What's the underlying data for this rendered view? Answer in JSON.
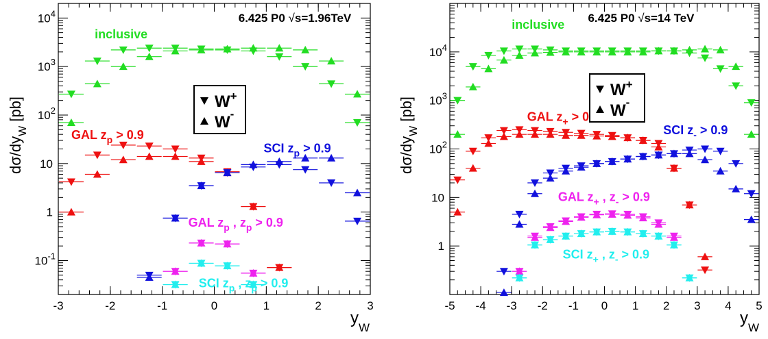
{
  "chart_data": [
    {
      "type": "scatter",
      "log_y": true,
      "xlim": [
        -3,
        3
      ],
      "ylim": [
        0.02,
        20000
      ],
      "xlabel": "y",
      "xlabel_sub": "W",
      "ylabel": "dσ/dy",
      "ylabel_sub": "W",
      "ylabel_unit": "[pb]",
      "info_text": "6.425 P0",
      "energy_label": "s=1.96TeV",
      "x_ticks": [
        "-3",
        "-2",
        "-1",
        "0",
        "1",
        "2",
        "3"
      ],
      "y_ticks": [
        {
          "value": 0.1,
          "base": "10",
          "exp": "-1"
        },
        {
          "value": 1,
          "base": "1",
          "exp": ""
        },
        {
          "value": 10,
          "base": "10",
          "exp": ""
        },
        {
          "value": 100,
          "base": "10",
          "exp": "2"
        },
        {
          "value": 1000,
          "base": "10",
          "exp": "3"
        },
        {
          "value": 10000,
          "base": "10",
          "exp": "4"
        }
      ],
      "legend": {
        "position": "center",
        "entries": [
          {
            "marker": "triangle-down",
            "label": "W",
            "sup": "+",
            "sub": ""
          },
          {
            "marker": "triangle-up",
            "label": "W",
            "sup": "",
            "sub": "-"
          }
        ]
      },
      "labels": [
        {
          "text": "inclusive",
          "color": "#22dd22",
          "x": -2.3,
          "y": 3800
        },
        {
          "text": "GAL z",
          "sub": "p",
          "tail": " > 0.9",
          "color": "#ee1111",
          "x": -2.75,
          "y": 32
        },
        {
          "text": "SCI z",
          "sub": "p",
          "tail": " > 0.9",
          "color": "#1111dd",
          "x": 0.95,
          "y": 17
        },
        {
          "text": "GAL z",
          "sub": "p",
          "tail": " , z",
          "sub2": "p",
          "tail2": " > 0.9",
          "color": "#ee22ee",
          "x": -0.5,
          "y": 0.5
        },
        {
          "text": "SCI z",
          "sub": "p",
          "tail": " , z",
          "sub2": "p",
          "tail2": " > 0.9",
          "color": "#22eeee",
          "x": -0.3,
          "y": 0.028
        }
      ],
      "series": [
        {
          "group": "inclusive",
          "boson": "W+",
          "color": "#22dd22",
          "x": [
            -2.75,
            -2.25,
            -1.75,
            -1.25,
            -0.75,
            -0.25,
            0.25,
            0.75,
            1.25,
            1.75,
            2.25,
            2.75
          ],
          "y": [
            270,
            1300,
            2200,
            2400,
            2400,
            2300,
            2200,
            2100,
            1600,
            1000,
            440,
            70
          ]
        },
        {
          "group": "inclusive",
          "boson": "W-",
          "color": "#22dd22",
          "x": [
            -2.75,
            -2.25,
            -1.75,
            -1.25,
            -0.75,
            -0.25,
            0.25,
            0.75,
            1.25,
            1.75,
            2.25,
            2.75
          ],
          "y": [
            70,
            440,
            1000,
            1600,
            2100,
            2200,
            2300,
            2400,
            2400,
            2200,
            1300,
            270
          ]
        },
        {
          "group": "GAL z_p",
          "boson": "W+",
          "color": "#ee1111",
          "x": [
            -2.75,
            -2.25,
            -1.75,
            -1.25,
            -0.75,
            -0.25,
            0.25,
            0.75
          ],
          "y": [
            4.2,
            15,
            24,
            23,
            20,
            13,
            6.8,
            1.3
          ]
        },
        {
          "group": "GAL z_p",
          "boson": "W-",
          "color": "#ee1111",
          "x": [
            -2.75,
            -2.25,
            -1.75,
            -1.25,
            -0.75,
            -0.25,
            0.25,
            0.75
          ],
          "y": [
            1.0,
            6.0,
            12,
            14,
            14,
            11,
            6.5,
            1.3
          ]
        },
        {
          "group": "SCI z_p",
          "boson": "W+",
          "color": "#1111dd",
          "x": [
            -0.75,
            -0.25,
            0.25,
            0.75,
            1.25,
            1.75,
            2.25,
            2.75
          ],
          "y": [
            0.75,
            3.5,
            6.5,
            8.5,
            9.5,
            7.5,
            4.0,
            0.65
          ]
        },
        {
          "group": "SCI z_p",
          "boson": "W-",
          "color": "#1111dd",
          "x": [
            -0.75,
            -0.25,
            0.25,
            0.75,
            1.25,
            1.75,
            2.25,
            2.75
          ],
          "y": [
            0.75,
            3.5,
            6.5,
            9.5,
            11,
            13,
            13,
            2.5
          ]
        },
        {
          "group": "GAL z_p, z_p",
          "boson": "W+",
          "color": "#ee22ee",
          "x": [
            -0.75,
            -0.25,
            0.25,
            0.75
          ],
          "y": [
            0.06,
            0.23,
            0.22,
            0.055
          ]
        },
        {
          "group": "GAL z_p, z_p",
          "boson": "W-",
          "color": "#ee22ee",
          "x": [
            -0.75,
            -0.25,
            0.25,
            0.75
          ],
          "y": [
            0.06,
            0.23,
            0.22,
            0.055
          ]
        },
        {
          "group": "SCI z_p, z_p",
          "boson": "W+",
          "color": "#22eeee",
          "x": [
            -0.75,
            -0.25,
            0.25,
            0.75
          ],
          "y": [
            0.032,
            0.088,
            0.078,
            0.032
          ]
        },
        {
          "group": "SCI z_p, z_p",
          "boson": "W-",
          "color": "#22eeee",
          "x": [
            -0.75,
            -0.25,
            0.25,
            0.75
          ],
          "y": [
            0.032,
            0.088,
            0.078,
            0.032
          ]
        },
        {
          "group": "GAL z_p red tail",
          "boson": "W+",
          "color": "#ee1111",
          "x": [
            1.25
          ],
          "y": [
            0.072
          ]
        },
        {
          "group": "GAL z_p red tail",
          "boson": "W-",
          "color": "#ee1111",
          "x": [
            1.25
          ],
          "y": [
            0.072
          ]
        },
        {
          "group": "SCI z_p blue tail",
          "boson": "W+",
          "color": "#1111dd",
          "x": [
            -1.25
          ],
          "y": [
            0.05
          ]
        },
        {
          "group": "SCI z_p blue tail",
          "boson": "W-",
          "color": "#1111dd",
          "x": [
            -1.25
          ],
          "y": [
            0.045
          ]
        }
      ]
    },
    {
      "type": "scatter",
      "log_y": true,
      "xlim": [
        -5,
        5
      ],
      "ylim": [
        0.1,
        100000
      ],
      "xlabel": "y",
      "xlabel_sub": "W",
      "ylabel": "dσ/dy",
      "ylabel_sub": "W",
      "ylabel_unit": "[pb]",
      "info_text": "6.425 P0",
      "energy_label": "s=14 TeV",
      "x_ticks": [
        "-5",
        "-4",
        "-3",
        "-2",
        "-1",
        "0",
        "1",
        "2",
        "3",
        "4",
        "5"
      ],
      "y_ticks": [
        {
          "value": 1,
          "base": "1",
          "exp": ""
        },
        {
          "value": 10,
          "base": "10",
          "exp": ""
        },
        {
          "value": 100,
          "base": "10",
          "exp": "2"
        },
        {
          "value": 1000,
          "base": "10",
          "exp": "3"
        },
        {
          "value": 10000,
          "base": "10",
          "exp": "4"
        }
      ],
      "legend": {
        "position": "center",
        "entries": [
          {
            "marker": "triangle-down",
            "label": "W",
            "sup": "+",
            "sub": ""
          },
          {
            "marker": "triangle-up",
            "label": "W",
            "sup": "",
            "sub": "-"
          }
        ]
      },
      "labels": [
        {
          "text": "inclusive",
          "color": "#22dd22",
          "x": -3.0,
          "y": 30000
        },
        {
          "text": "GAL z",
          "sub": "+",
          "tail": " > 0.9",
          "color": "#ee1111",
          "x": -2.5,
          "y": 380
        },
        {
          "text": "SCI z",
          "sub": "-",
          "tail": " > 0.9",
          "color": "#1111dd",
          "x": 1.9,
          "y": 200
        },
        {
          "text": "GAL z",
          "sub": "+",
          "tail": " , z",
          "sub2": "-",
          "tail2": " > 0.9",
          "color": "#ee22ee",
          "x": -1.5,
          "y": 8.5
        },
        {
          "text": "SCI z",
          "sub": "+",
          "tail": " , z",
          "sub2": "-",
          "tail2": " > 0.9",
          "color": "#22eeee",
          "x": -1.35,
          "y": 0.55
        }
      ],
      "series": [
        {
          "group": "inclusive",
          "boson": "W+",
          "color": "#22dd22",
          "x": [
            -4.75,
            -4.25,
            -3.75,
            -3.25,
            -2.75,
            -2.25,
            -1.75,
            -1.25,
            -0.75,
            -0.25,
            0.25,
            0.75,
            1.25,
            1.75,
            2.25,
            2.75,
            3.25,
            3.75,
            4.25,
            4.75
          ],
          "y": [
            1000,
            5000,
            8500,
            10500,
            11500,
            11500,
            11000,
            10500,
            10500,
            10500,
            10500,
            10500,
            10500,
            10500,
            10500,
            9500,
            7500,
            4500,
            2000,
            900
          ]
        },
        {
          "group": "inclusive",
          "boson": "W-",
          "color": "#22dd22",
          "x": [
            -4.75,
            -4.25,
            -3.75,
            -3.25,
            -2.75,
            -2.25,
            -1.75,
            -1.25,
            -0.75,
            -0.25,
            0.25,
            0.75,
            1.25,
            1.75,
            2.25,
            2.75,
            3.25,
            3.75,
            4.25,
            4.75
          ],
          "y": [
            200,
            1900,
            4500,
            6800,
            8500,
            9500,
            9800,
            10000,
            10000,
            10000,
            10000,
            10000,
            10000,
            10500,
            10500,
            11000,
            11500,
            11000,
            5000,
            200
          ]
        },
        {
          "group": "GAL z_+",
          "boson": "W+",
          "color": "#ee1111",
          "x": [
            -4.75,
            -4.25,
            -3.75,
            -3.25,
            -2.75,
            -2.25,
            -1.75,
            -1.25,
            -0.75,
            -0.25,
            0.25,
            0.75,
            1.25,
            1.75,
            2.25,
            2.75,
            3.25
          ],
          "y": [
            23,
            90,
            170,
            240,
            250,
            240,
            230,
            220,
            210,
            200,
            190,
            170,
            150,
            130,
            40,
            7,
            0.32
          ]
        },
        {
          "group": "GAL z_+",
          "boson": "W-",
          "color": "#ee1111",
          "x": [
            -4.75,
            -4.25,
            -3.75,
            -3.25,
            -2.75,
            -2.25,
            -1.75,
            -1.25,
            -0.75,
            -0.25,
            0.25,
            0.75,
            1.25,
            1.75,
            2.25,
            2.75,
            3.25
          ],
          "y": [
            5,
            40,
            130,
            180,
            200,
            200,
            200,
            190,
            190,
            185,
            180,
            170,
            150,
            110,
            40,
            7,
            0.6
          ]
        },
        {
          "group": "SCI z_-",
          "boson": "W+",
          "color": "#1111dd",
          "x": [
            -3.25,
            -2.75,
            -2.25,
            -1.75,
            -1.25,
            -0.75,
            -0.25,
            0.25,
            0.75,
            1.25,
            1.75,
            2.25,
            2.75,
            3.25,
            3.75,
            4.25,
            4.75
          ],
          "y": [
            0.3,
            4.5,
            20,
            32,
            40,
            45,
            50,
            55,
            62,
            70,
            75,
            80,
            95,
            100,
            90,
            50,
            12
          ]
        },
        {
          "group": "SCI z_-",
          "boson": "W-",
          "color": "#1111dd",
          "x": [
            -3.25,
            -2.75,
            -2.25,
            -1.75,
            -1.25,
            -0.75,
            -0.25,
            0.25,
            0.75,
            1.25,
            1.75,
            2.25,
            2.75,
            3.25,
            3.75,
            4.25,
            4.75
          ],
          "y": [
            0.11,
            2.8,
            12,
            25,
            35,
            42,
            50,
            55,
            62,
            70,
            75,
            80,
            80,
            60,
            35,
            15,
            3.5
          ]
        },
        {
          "group": "GAL z_+, z_-",
          "boson": "W+",
          "color": "#ee22ee",
          "x": [
            -2.75,
            -2.25,
            -1.75,
            -1.25,
            -0.75,
            -0.25,
            0.25,
            0.75,
            1.25,
            1.75,
            2.25
          ],
          "y": [
            0.3,
            1.6,
            2.5,
            3.3,
            4.0,
            4.5,
            4.6,
            4.5,
            4.0,
            3.0,
            1.6
          ]
        },
        {
          "group": "GAL z_+, z_-",
          "boson": "W-",
          "color": "#ee22ee",
          "x": [
            -2.75,
            -2.25,
            -1.75,
            -1.25,
            -0.75,
            -0.25,
            0.25,
            0.75,
            1.25,
            1.75,
            2.25
          ],
          "y": [
            0.3,
            1.5,
            2.4,
            3.2,
            3.9,
            4.4,
            4.5,
            4.3,
            3.8,
            2.8,
            1.5
          ]
        },
        {
          "group": "SCI z_+, z_-",
          "boson": "W+",
          "color": "#22eeee",
          "x": [
            -2.75,
            -2.25,
            -1.75,
            -1.25,
            -0.75,
            -0.25,
            0.25,
            0.75,
            1.25,
            1.75,
            2.25,
            2.75
          ],
          "y": [
            0.22,
            1.05,
            1.35,
            1.6,
            1.8,
            1.95,
            2.0,
            1.95,
            1.8,
            1.6,
            1.05,
            0.22
          ]
        },
        {
          "group": "SCI z_+, z_-",
          "boson": "W-",
          "color": "#22eeee",
          "x": [
            -2.75,
            -2.25,
            -1.75,
            -1.25,
            -0.75,
            -0.25,
            0.25,
            0.75,
            1.25,
            1.75,
            2.25,
            2.75
          ],
          "y": [
            0.22,
            1.05,
            1.35,
            1.6,
            1.8,
            1.95,
            2.0,
            1.95,
            1.8,
            1.6,
            1.05,
            0.22
          ]
        }
      ]
    }
  ]
}
